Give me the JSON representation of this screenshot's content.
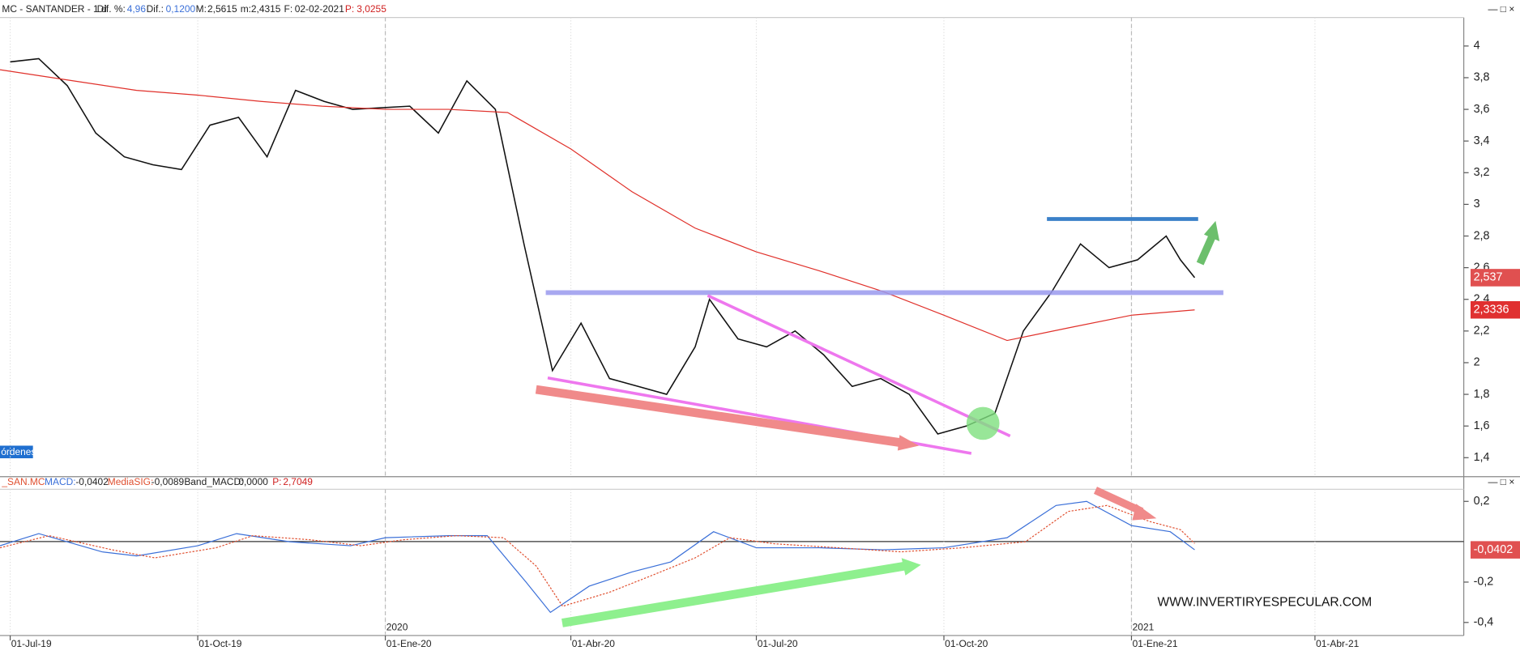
{
  "header": {
    "symbol": "MC - SANTANDER - 1 d",
    "difpct_label": "Dif. %:",
    "difpct": "4,96",
    "dif_label": "Dif.:",
    "dif": "0,1200",
    "max_label": "M:",
    "max": "2,5615",
    "min_label": "m:",
    "min": "2,4315",
    "date_label": "F:",
    "date": "02-02-2021",
    "p_label": "P:",
    "p": "3,0255",
    "orders": "órdenes",
    "watermark": "WWW.INVERTIRYESPECULAR.COM"
  },
  "macd_header": {
    "symbol": "_SAN.MC",
    "macd_label": "MACD:",
    "macd": "-0,0402",
    "sig_label": "MediaSIG:",
    "sig": "-0,0089",
    "band_label": "Band_MACD:",
    "band": "0,0000",
    "p_label": "P:",
    "p": "2,7049"
  },
  "chart_data": [
    {
      "type": "line",
      "xlim": [
        "2019-06-26",
        "2021-06-13"
      ],
      "ylim": [
        1.28,
        4.18
      ],
      "yticks": [
        {
          "value": 1.4,
          "label": "1,4"
        },
        {
          "value": 1.6,
          "label": "1,6"
        },
        {
          "value": 1.8,
          "label": "1,8"
        },
        {
          "value": 2,
          "label": "2"
        },
        {
          "value": 2.2,
          "label": "2,2"
        },
        {
          "value": 2.4,
          "label": "2,4"
        },
        {
          "value": 2.6,
          "label": "2,6"
        },
        {
          "value": 2.8,
          "label": "2,8"
        },
        {
          "value": 3,
          "label": "3"
        },
        {
          "value": 3.2,
          "label": "3,2"
        },
        {
          "value": 3.4,
          "label": "3,4"
        },
        {
          "value": 3.6,
          "label": "3,6"
        },
        {
          "value": 3.8,
          "label": "3,8"
        },
        {
          "value": 4,
          "label": "4"
        }
      ],
      "xticks": [
        {
          "value": "2019-07-01",
          "label": "01-Jul-19"
        },
        {
          "value": "2019-10-01",
          "label": "01-Oct-19"
        },
        {
          "value": "2020-01-01",
          "label": "01-Ene-20"
        },
        {
          "value": "2020-04-01",
          "label": "01-Abr-20"
        },
        {
          "value": "2020-07-01",
          "label": "01-Jul-20"
        },
        {
          "value": "2020-10-01",
          "label": "01-Oct-20"
        },
        {
          "value": "2021-01-01",
          "label": "01-Ene-21"
        },
        {
          "value": "2021-04-01",
          "label": "01-Abr-21"
        }
      ],
      "year_lines": [
        {
          "value": "2020-01-01",
          "label": "2020"
        },
        {
          "value": "2021-01-01",
          "label": "2021"
        }
      ],
      "last_labels": [
        {
          "value": 2.537,
          "label": "2,537",
          "color": "#e05050"
        },
        {
          "value": 2.3336,
          "label": "2,3336",
          "color": "#e03030"
        }
      ],
      "series": [
        {
          "name": "SANTANDER",
          "color": "#111111",
          "x": [
            "2019-07-01",
            "2019-07-15",
            "2019-07-29",
            "2019-08-12",
            "2019-08-26",
            "2019-09-09",
            "2019-09-23",
            "2019-10-07",
            "2019-10-21",
            "2019-11-04",
            "2019-11-18",
            "2019-12-02",
            "2019-12-16",
            "2020-01-13",
            "2020-01-27",
            "2020-02-10",
            "2020-02-24",
            "2020-03-09",
            "2020-03-23",
            "2020-04-06",
            "2020-04-20",
            "2020-05-04",
            "2020-05-18",
            "2020-06-01",
            "2020-06-08",
            "2020-06-22",
            "2020-07-06",
            "2020-07-20",
            "2020-08-03",
            "2020-08-17",
            "2020-08-31",
            "2020-09-14",
            "2020-09-28",
            "2020-10-12",
            "2020-10-26",
            "2020-11-09",
            "2020-11-23",
            "2020-12-07",
            "2020-12-21",
            "2021-01-04",
            "2021-01-18",
            "2021-01-25",
            "2021-02-01"
          ],
          "values": [
            3.9,
            3.92,
            3.75,
            3.45,
            3.3,
            3.25,
            3.22,
            3.5,
            3.55,
            3.3,
            3.72,
            3.65,
            3.6,
            3.62,
            3.45,
            3.78,
            3.6,
            2.75,
            1.95,
            2.25,
            1.9,
            1.85,
            1.8,
            2.1,
            2.4,
            2.15,
            2.1,
            2.2,
            2.05,
            1.85,
            1.9,
            1.8,
            1.55,
            1.6,
            1.68,
            2.2,
            2.45,
            2.75,
            2.6,
            2.65,
            2.8,
            2.65,
            2.537
          ]
        },
        {
          "name": "MA200",
          "color": "#e0302a",
          "x": [
            "2019-06-26",
            "2019-08-01",
            "2019-09-01",
            "2019-10-01",
            "2019-11-01",
            "2019-12-01",
            "2020-01-01",
            "2020-02-01",
            "2020-03-01",
            "2020-04-01",
            "2020-05-01",
            "2020-06-01",
            "2020-07-01",
            "2020-08-01",
            "2020-09-01",
            "2020-10-01",
            "2020-11-01",
            "2020-12-01",
            "2021-01-01",
            "2021-02-01"
          ],
          "values": [
            3.85,
            3.78,
            3.72,
            3.69,
            3.65,
            3.62,
            3.6,
            3.6,
            3.58,
            3.35,
            3.08,
            2.85,
            2.7,
            2.58,
            2.45,
            2.3,
            2.14,
            2.22,
            2.3,
            2.3336
          ]
        }
      ]
    },
    {
      "type": "line",
      "xlim": [
        "2019-06-26",
        "2021-06-13"
      ],
      "ylim": [
        -0.46,
        0.26
      ],
      "yticks": [
        {
          "value": 0.2,
          "label": "0,2"
        },
        {
          "value": -0.2,
          "label": "-0,2"
        },
        {
          "value": -0.4,
          "label": "-0,4"
        }
      ],
      "last_labels": [
        {
          "value": -0.0402,
          "label": "-0,0402",
          "color": "#e05050"
        }
      ],
      "series": [
        {
          "name": "MACD",
          "color": "#3a6fd8",
          "x": [
            "2019-06-26",
            "2019-07-15",
            "2019-08-15",
            "2019-09-01",
            "2019-10-01",
            "2019-10-20",
            "2019-11-15",
            "2019-12-15",
            "2020-01-01",
            "2020-02-01",
            "2020-02-20",
            "2020-03-10",
            "2020-03-22",
            "2020-04-10",
            "2020-05-01",
            "2020-05-20",
            "2020-06-10",
            "2020-07-01",
            "2020-08-01",
            "2020-09-01",
            "2020-10-01",
            "2020-11-01",
            "2020-11-25",
            "2020-12-10",
            "2021-01-01",
            "2021-01-20",
            "2021-02-01"
          ],
          "values": [
            -0.02,
            0.04,
            -0.05,
            -0.07,
            -0.02,
            0.04,
            0.0,
            -0.02,
            0.02,
            0.03,
            0.03,
            -0.2,
            -0.35,
            -0.22,
            -0.15,
            -0.1,
            0.05,
            -0.03,
            -0.03,
            -0.04,
            -0.03,
            0.02,
            0.18,
            0.2,
            0.08,
            0.05,
            -0.0402
          ]
        },
        {
          "name": "MediaSIG",
          "color": "#e05030",
          "x": [
            "2019-06-26",
            "2019-07-20",
            "2019-08-20",
            "2019-09-10",
            "2019-10-10",
            "2019-10-28",
            "2019-11-25",
            "2019-12-20",
            "2020-01-10",
            "2020-02-05",
            "2020-02-28",
            "2020-03-15",
            "2020-03-28",
            "2020-04-20",
            "2020-05-10",
            "2020-06-01",
            "2020-06-18",
            "2020-07-10",
            "2020-08-10",
            "2020-09-10",
            "2020-10-10",
            "2020-11-10",
            "2020-12-01",
            "2020-12-20",
            "2021-01-10",
            "2021-01-25",
            "2021-02-01"
          ],
          "values": [
            -0.03,
            0.03,
            -0.04,
            -0.08,
            -0.03,
            0.03,
            0.01,
            -0.02,
            0.01,
            0.03,
            0.02,
            -0.12,
            -0.32,
            -0.25,
            -0.17,
            -0.08,
            0.02,
            -0.01,
            -0.03,
            -0.05,
            -0.03,
            0.0,
            0.15,
            0.18,
            0.1,
            0.06,
            -0.0089
          ]
        }
      ]
    }
  ]
}
